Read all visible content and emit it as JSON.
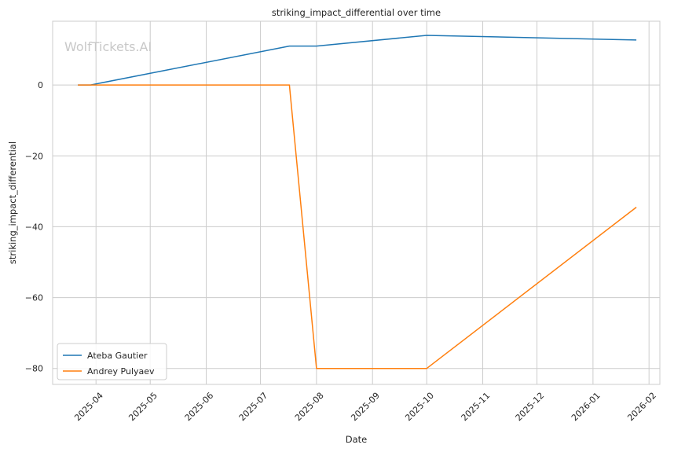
{
  "chart_data": {
    "type": "line",
    "title": "striking_impact_differential over time",
    "xlabel": "Date",
    "ylabel": "striking_impact_differential",
    "watermark": "WolfTickets.AI",
    "x_axis_type": "date",
    "xlim": [
      "2025-03-08",
      "2026-02-07"
    ],
    "ylim": [
      -84.5,
      18
    ],
    "xticks": [
      "2025-04-01",
      "2025-05-01",
      "2025-06-01",
      "2025-07-01",
      "2025-08-01",
      "2025-09-01",
      "2025-10-01",
      "2025-11-01",
      "2025-12-01",
      "2026-01-01",
      "2026-02-01"
    ],
    "xtick_labels": [
      "2025-04",
      "2025-05",
      "2025-06",
      "2025-07",
      "2025-08",
      "2025-09",
      "2025-10",
      "2025-11",
      "2025-12",
      "2026-01",
      "2026-02"
    ],
    "yticks": [
      0,
      -20,
      -40,
      -60,
      -80
    ],
    "ytick_labels": [
      "0",
      "−20",
      "−40",
      "−60",
      "−80"
    ],
    "grid": true,
    "legend_position": "lower-left",
    "series": [
      {
        "name": "Ateba Gautier",
        "color": "#1f77b4",
        "points": [
          {
            "x": "2025-03-22",
            "y": 0
          },
          {
            "x": "2025-03-29",
            "y": 0
          },
          {
            "x": "2025-07-17",
            "y": 11
          },
          {
            "x": "2025-08-01",
            "y": 11
          },
          {
            "x": "2025-10-01",
            "y": 14
          },
          {
            "x": "2026-01-25",
            "y": 12.7
          }
        ]
      },
      {
        "name": "Andrey Pulyaev",
        "color": "#ff7f0e",
        "points": [
          {
            "x": "2025-03-22",
            "y": 0
          },
          {
            "x": "2025-07-17",
            "y": 0
          },
          {
            "x": "2025-08-01",
            "y": -80
          },
          {
            "x": "2025-10-01",
            "y": -80
          },
          {
            "x": "2026-01-25",
            "y": -34.5
          }
        ]
      }
    ]
  }
}
